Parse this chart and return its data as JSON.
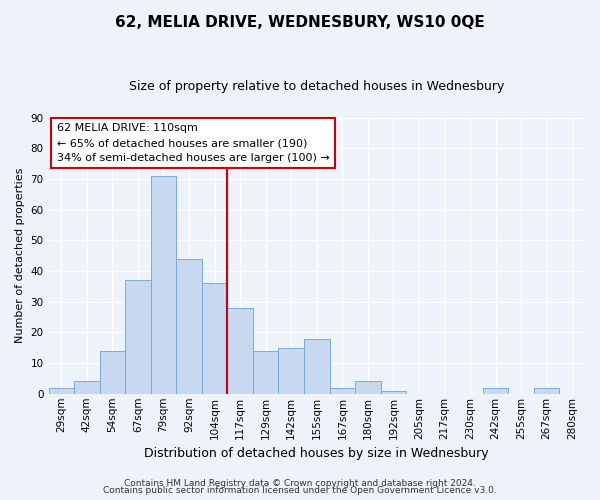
{
  "title": "62, MELIA DRIVE, WEDNESBURY, WS10 0QE",
  "subtitle": "Size of property relative to detached houses in Wednesbury",
  "xlabel": "Distribution of detached houses by size in Wednesbury",
  "ylabel": "Number of detached properties",
  "footer_line1": "Contains HM Land Registry data © Crown copyright and database right 2024.",
  "footer_line2": "Contains public sector information licensed under the Open Government Licence v3.0.",
  "bin_labels": [
    "29sqm",
    "42sqm",
    "54sqm",
    "67sqm",
    "79sqm",
    "92sqm",
    "104sqm",
    "117sqm",
    "129sqm",
    "142sqm",
    "155sqm",
    "167sqm",
    "180sqm",
    "192sqm",
    "205sqm",
    "217sqm",
    "230sqm",
    "242sqm",
    "255sqm",
    "267sqm",
    "280sqm"
  ],
  "bar_heights": [
    2,
    4,
    14,
    37,
    71,
    44,
    36,
    28,
    14,
    15,
    18,
    2,
    4,
    1,
    0,
    0,
    0,
    2,
    0,
    2,
    0
  ],
  "bar_color": "#c6d9f0",
  "bar_edge_color": "#7aaadc",
  "reference_line_color": "#cc0000",
  "ylim": [
    0,
    90
  ],
  "yticks": [
    0,
    10,
    20,
    30,
    40,
    50,
    60,
    70,
    80,
    90
  ],
  "annotation_title": "62 MELIA DRIVE: 110sqm",
  "annotation_line1": "← 65% of detached houses are smaller (190)",
  "annotation_line2": "34% of semi-detached houses are larger (100) →",
  "annotation_box_color": "#ffffff",
  "annotation_box_edge": "#cc0000",
  "background_color": "#eef2f9",
  "grid_color": "#ffffff",
  "title_fontsize": 11,
  "subtitle_fontsize": 9,
  "ylabel_fontsize": 8,
  "xlabel_fontsize": 9,
  "tick_fontsize": 7.5,
  "footer_fontsize": 6.5
}
